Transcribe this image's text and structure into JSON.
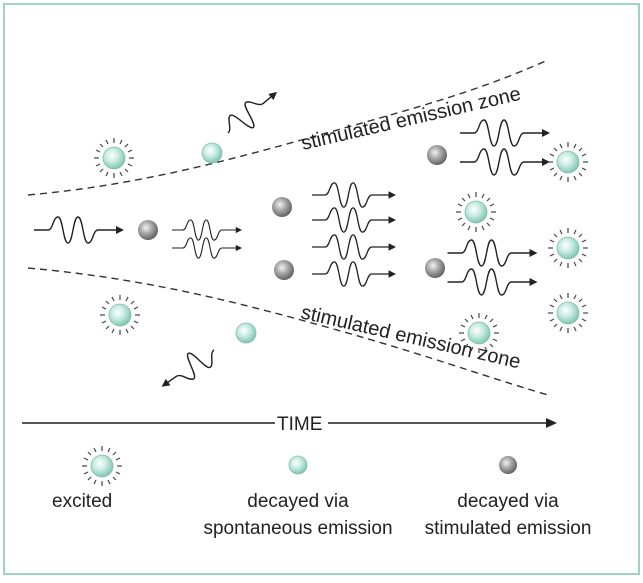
{
  "zone_label_top": "stimulated emission zone",
  "zone_label_bottom": "stimulated emission zone",
  "time_label": "TIME",
  "legend": {
    "excited": "excited",
    "spontaneous_line1": "decayed via",
    "spontaneous_line2": "spontaneous emission",
    "stimulated_line1": "decayed via",
    "stimulated_line2": "stimulated emission"
  },
  "colors": {
    "border": "#9fd3c4",
    "excited_fill": "#b9e6d8",
    "decayed_spontaneous_fill": "#9fdccb",
    "decayed_stimulated_fill": "#8a8a8a",
    "ink": "#222222"
  }
}
